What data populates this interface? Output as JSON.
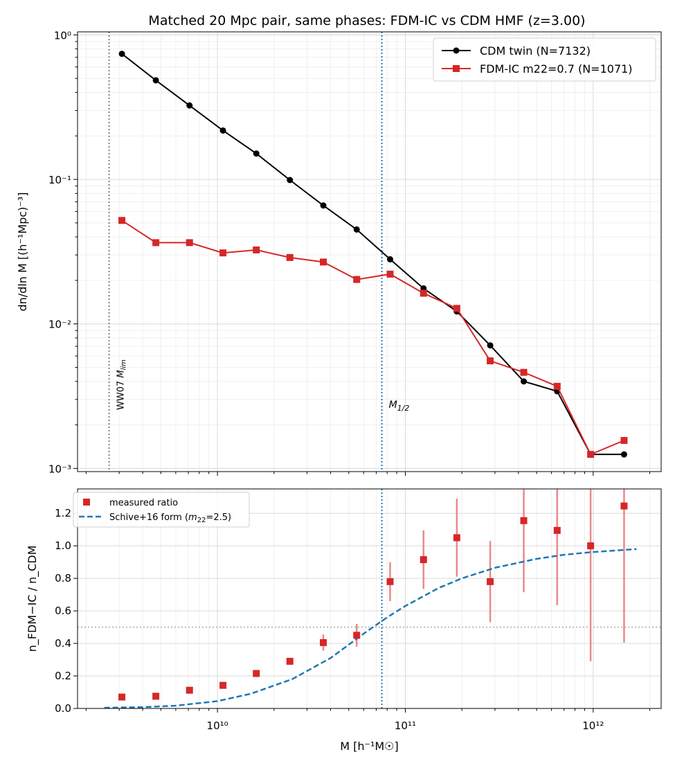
{
  "colors": {
    "cdm": "#000000",
    "fdm": "#d62728",
    "errbar": "#e8898a",
    "schive": "#1f77b4",
    "half_mass_line": "#1f77b4",
    "mlim_line": "#808080",
    "half_line": "#bbbbbb"
  },
  "chart_data": [
    {
      "type": "line",
      "title": "Matched 20 Mpc pair, same phases: FDM-IC vs CDM HMF (z=3.00)",
      "xscale": "log",
      "yscale": "log",
      "xlim": [
        1800000000.0,
        2300000000000.0
      ],
      "ylim": [
        0.00095,
        1.05
      ],
      "ylabel": "dn/dln M [(h⁻¹Mpc)⁻³]",
      "y_ticks": [
        {
          "value": 1,
          "label": "10⁰"
        },
        {
          "value": 0.1,
          "label": "10⁻¹"
        },
        {
          "value": 0.01,
          "label": "10⁻²"
        },
        {
          "value": 0.001,
          "label": "10⁻³"
        }
      ],
      "grid": true,
      "legend_position": "top-right",
      "series": [
        {
          "name": "CDM twin (N=7132)",
          "marker": "circle",
          "x": [
            3100000000.0,
            4700000000.0,
            7100000000.0,
            10700000000.0,
            16100000000.0,
            24300000000.0,
            36600000000.0,
            55100000000.0,
            83000000000.0,
            125000000000.0,
            188000000000.0,
            283000000000.0,
            427000000000.0,
            643000000000.0,
            969000000000.0,
            1460000000000.0
          ],
          "values": [
            0.74,
            0.485,
            0.325,
            0.218,
            0.151,
            0.099,
            0.066,
            0.045,
            0.028,
            0.0176,
            0.0122,
            0.0071,
            0.004,
            0.00342,
            0.00125,
            0.00125
          ]
        },
        {
          "name": "FDM-IC m22=0.7 (N=1071)",
          "marker": "square",
          "x": [
            3100000000.0,
            4700000000.0,
            7100000000.0,
            10700000000.0,
            16100000000.0,
            24300000000.0,
            36600000000.0,
            55100000000.0,
            83000000000.0,
            125000000000.0,
            188000000000.0,
            283000000000.0,
            427000000000.0,
            643000000000.0,
            969000000000.0,
            1460000000000.0
          ],
          "values": [
            0.052,
            0.0365,
            0.0365,
            0.031,
            0.0325,
            0.0288,
            0.0268,
            0.0203,
            0.0221,
            0.0163,
            0.0128,
            0.00555,
            0.00462,
            0.0037,
            0.00125,
            0.00156
          ]
        }
      ],
      "annotations": [
        {
          "text": "WW07 M_lim",
          "label_main": "WW07 M",
          "label_sub": "lim",
          "x": 2650000000.0,
          "line": "vertical-dotted"
        },
        {
          "text": "M_1/2",
          "label_main": "M",
          "label_sub": "1/2",
          "x": 75000000000.0,
          "line": "vertical-dotted"
        }
      ]
    },
    {
      "type": "scatter",
      "xscale": "log",
      "xlim": [
        1800000000.0,
        2300000000000.0
      ],
      "ylim": [
        0,
        1.35
      ],
      "xlabel": "M [h⁻¹M☉]",
      "ylabel": "n_FDM−IC / n_CDM",
      "x_ticks": [
        {
          "value": 10000000000.0,
          "label": "10¹⁰"
        },
        {
          "value": 100000000000.0,
          "label": "10¹¹"
        },
        {
          "value": 1000000000000.0,
          "label": "10¹²"
        }
      ],
      "y_ticks": [
        "0.0",
        "0.2",
        "0.4",
        "0.6",
        "0.8",
        "1.0",
        "1.2"
      ],
      "grid": true,
      "legend_position": "top-left",
      "hline": 0.5,
      "vline": 75000000000.0,
      "series": [
        {
          "name": "measured ratio",
          "marker": "square",
          "x": [
            3100000000.0,
            4700000000.0,
            7100000000.0,
            10700000000.0,
            16100000000.0,
            24300000000.0,
            36600000000.0,
            55100000000.0,
            83000000000.0,
            125000000000.0,
            188000000000.0,
            283000000000.0,
            427000000000.0,
            643000000000.0,
            969000000000.0,
            1460000000000.0
          ],
          "values": [
            0.07,
            0.075,
            0.112,
            0.142,
            0.215,
            0.29,
            0.405,
            0.45,
            0.78,
            0.915,
            1.05,
            0.78,
            1.155,
            1.095,
            1.0,
            1.245
          ],
          "err_low": [
            0,
            0,
            0,
            0,
            0,
            0.02,
            0.05,
            0.07,
            0.12,
            0.18,
            0.24,
            0.25,
            0.44,
            0.46,
            0.71,
            0.84
          ],
          "err_high": [
            0,
            0,
            0,
            0,
            0,
            0.02,
            0.05,
            0.07,
            0.12,
            0.18,
            0.24,
            0.25,
            0.44,
            0.46,
            0.71,
            0.84
          ]
        },
        {
          "name": "Schive+16 form (m22=2.5)",
          "legend_main": "Schive+16 form (m",
          "legend_sub": "22",
          "legend_tail": "=2.5)",
          "type": "line",
          "style": "dashed",
          "x": [
            2500000000.0,
            4000000000.0,
            6000000000.0,
            10000000000.0,
            15000000000.0,
            25000000000.0,
            40000000000.0,
            60000000000.0,
            80000000000.0,
            100000000000.0,
            150000000000.0,
            200000000000.0,
            300000000000.0,
            500000000000.0,
            700000000000.0,
            1000000000000.0,
            1700000000000.0
          ],
          "values": [
            0.004,
            0.008,
            0.017,
            0.045,
            0.09,
            0.18,
            0.31,
            0.46,
            0.56,
            0.63,
            0.74,
            0.8,
            0.865,
            0.92,
            0.945,
            0.962,
            0.98
          ]
        }
      ]
    }
  ]
}
